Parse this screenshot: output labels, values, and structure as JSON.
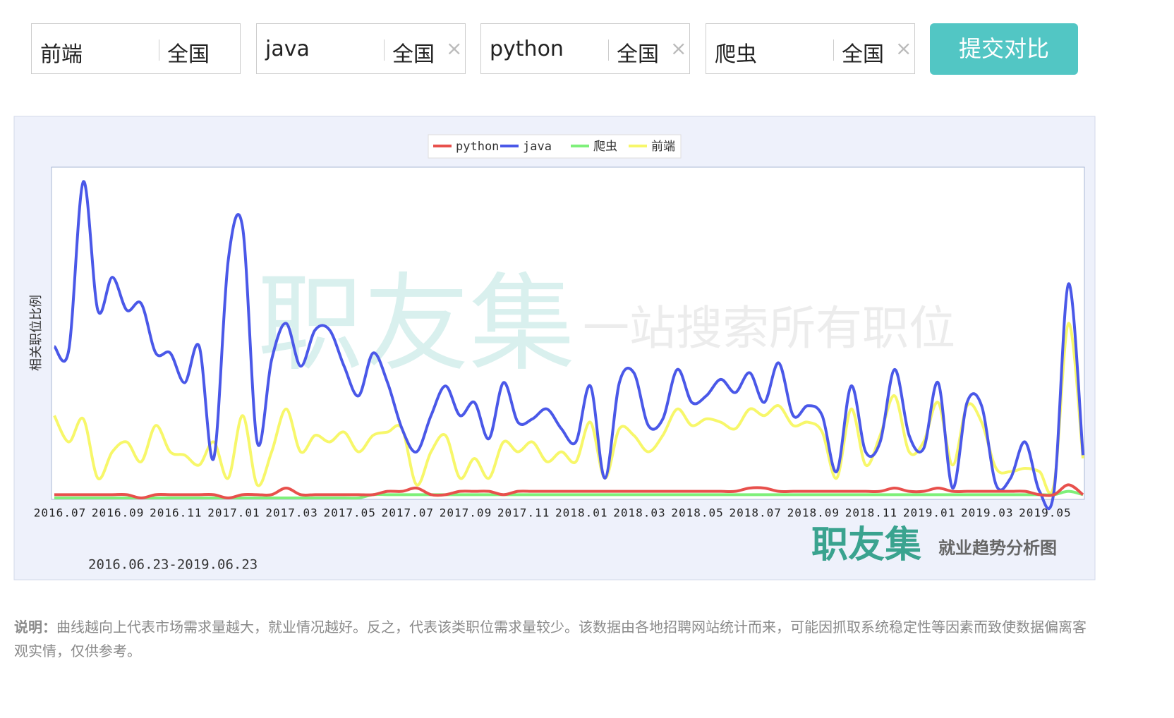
{
  "search_boxes": [
    {
      "keyword": "前端",
      "region": "全国"
    },
    {
      "keyword": "java",
      "region": "全国"
    },
    {
      "keyword": "python",
      "region": "全国"
    },
    {
      "keyword": "爬虫",
      "region": "全国"
    }
  ],
  "submit_button": "提交对比",
  "watermark": {
    "brand": "职友集",
    "slogan": "一站搜索所有职位"
  },
  "footer_logo": {
    "brand": "职友集",
    "caption": "就业趋势分析图"
  },
  "date_range": "2016.06.23-2019.06.23",
  "description": {
    "label": "说明：",
    "text": "曲线越向上代表市场需求量越大，就业情况越好。反之，代表该类职位需求量较少。该数据由各地招聘网站统计而来，可能因抓取系统稳定性等因素而致使数据偏离客观实情，仅供参考。"
  },
  "chart_data": {
    "type": "line",
    "y_label": "相关职位比例",
    "ylim": [
      0,
      100
    ],
    "categories": [
      "2016.07",
      null,
      null,
      null,
      "2016.09",
      null,
      null,
      null,
      "2016.11",
      null,
      null,
      null,
      "2017.01",
      null,
      null,
      null,
      "2017.03",
      null,
      null,
      null,
      "2017.05",
      null,
      null,
      null,
      "2017.07",
      null,
      null,
      null,
      "2017.09",
      null,
      null,
      null,
      "2017.11",
      null,
      null,
      null,
      "2018.01",
      null,
      null,
      null,
      "2018.03",
      null,
      null,
      null,
      "2018.05",
      null,
      null,
      null,
      "2018.07",
      null,
      null,
      null,
      "2018.09",
      null,
      null,
      null,
      "2018.11",
      null,
      null,
      null,
      "2019.01",
      null,
      null,
      null,
      "2019.03",
      null,
      null,
      null,
      "2019.05",
      null,
      null,
      null
    ],
    "series": [
      {
        "name": "python",
        "color": "#e8504c",
        "values": [
          1,
          1,
          1,
          1,
          1,
          1,
          0,
          1,
          1,
          1,
          1,
          1,
          0,
          1,
          1,
          1,
          3,
          1,
          1,
          1,
          1,
          1,
          1,
          2,
          2,
          3,
          1,
          1,
          2,
          2,
          2,
          1,
          2,
          2,
          2,
          2,
          2,
          2,
          2,
          2,
          2,
          2,
          2,
          2,
          2,
          2,
          2,
          2,
          3,
          3,
          2,
          2,
          2,
          2,
          2,
          2,
          2,
          2,
          3,
          2,
          2,
          3,
          2,
          2,
          2,
          2,
          2,
          2,
          1,
          1,
          4,
          1
        ]
      },
      {
        "name": "java",
        "color": "#4a58e8",
        "values": [
          46,
          45,
          96,
          57,
          67,
          57,
          59,
          44,
          44,
          35,
          46,
          12,
          72,
          82,
          17,
          42,
          53,
          40,
          51,
          51,
          40,
          31,
          44,
          35,
          21,
          14,
          25,
          34,
          25,
          29,
          18,
          35,
          23,
          24,
          27,
          21,
          17,
          34,
          6,
          35,
          38,
          22,
          24,
          39,
          29,
          31,
          36,
          32,
          38,
          29,
          41,
          25,
          28,
          25,
          8,
          34,
          14,
          17,
          39,
          19,
          15,
          35,
          3,
          29,
          28,
          4,
          6,
          17,
          2,
          2,
          65,
          13
        ]
      },
      {
        "name": "爬虫",
        "color": "#7ef07a",
        "values": [
          0,
          0,
          0,
          0,
          0,
          0,
          0,
          0,
          0,
          0,
          0,
          0,
          0,
          0,
          0,
          0,
          0,
          0,
          0,
          0,
          0,
          0,
          1,
          1,
          1,
          1,
          1,
          1,
          1,
          1,
          1,
          1,
          1,
          1,
          1,
          1,
          1,
          1,
          1,
          1,
          1,
          1,
          1,
          1,
          1,
          1,
          1,
          1,
          1,
          1,
          1,
          1,
          1,
          1,
          1,
          1,
          1,
          1,
          1,
          1,
          1,
          1,
          1,
          1,
          1,
          1,
          1,
          1,
          1,
          1,
          2,
          1
        ]
      },
      {
        "name": "前端",
        "color": "#f7f76a",
        "values": [
          25,
          17,
          24,
          6,
          14,
          17,
          11,
          22,
          14,
          13,
          10,
          17,
          6,
          25,
          4,
          14,
          27,
          14,
          19,
          17,
          20,
          14,
          19,
          20,
          21,
          4,
          14,
          19,
          6,
          12,
          6,
          17,
          14,
          17,
          11,
          14,
          11,
          23,
          6,
          21,
          19,
          14,
          19,
          27,
          22,
          24,
          23,
          21,
          27,
          25,
          28,
          22,
          23,
          20,
          6,
          27,
          10,
          19,
          31,
          14,
          17,
          29,
          10,
          28,
          23,
          9,
          8,
          9,
          8,
          4,
          53,
          12
        ]
      }
    ]
  }
}
